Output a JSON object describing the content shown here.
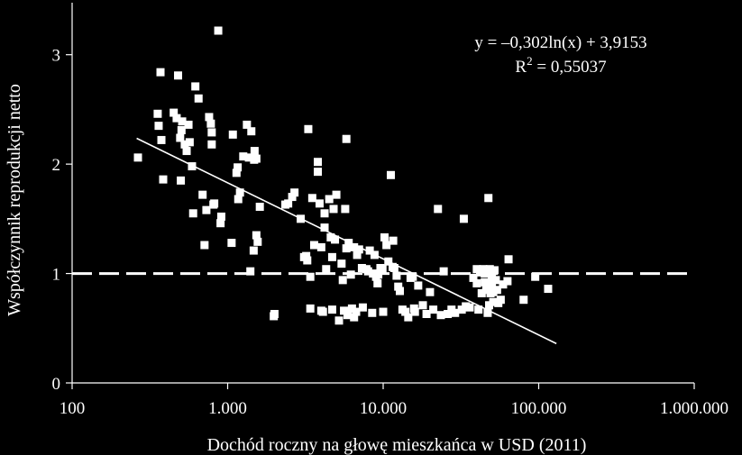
{
  "chart_data": {
    "type": "scatter",
    "title": "",
    "xlabel": "Dochód roczny na głowę mieszkańca w USD (2011)",
    "ylabel": "Współczynnik reprodukcji netto",
    "x_scale": "log",
    "xlim": [
      100,
      1000000
    ],
    "ylim": [
      0,
      3.5
    ],
    "x_ticks": [
      {
        "value": 100,
        "label": "100"
      },
      {
        "value": 1000,
        "label": "1.000"
      },
      {
        "value": 10000,
        "label": "10.000"
      },
      {
        "value": 100000,
        "label": "100.000"
      },
      {
        "value": 1000000,
        "label": "1.000.000"
      }
    ],
    "y_ticks": [
      {
        "value": 0,
        "label": "0"
      },
      {
        "value": 1,
        "label": "1"
      },
      {
        "value": 2,
        "label": "2"
      },
      {
        "value": 3,
        "label": "3"
      }
    ],
    "grid": false,
    "reference_line": {
      "y": 1,
      "style": "dashed"
    },
    "trendline": {
      "type": "logarithmic",
      "a": -0.302,
      "b": 3.9153,
      "x_range": [
        260,
        130000
      ],
      "equation_label": "y = –0,302ln(x) + 3,9153",
      "r2_prefix": "R",
      "r2_exp": "2",
      "r2_value": " = 0,55037"
    },
    "colors": {
      "background": "#000000",
      "foreground": "#ffffff"
    },
    "points": [
      [
        265,
        2.06
      ],
      [
        355,
        2.46
      ],
      [
        360,
        2.35
      ],
      [
        370,
        2.84
      ],
      [
        385,
        1.86
      ],
      [
        375,
        2.22
      ],
      [
        450,
        2.47
      ],
      [
        470,
        2.42
      ],
      [
        480,
        2.81
      ],
      [
        495,
        2.24
      ],
      [
        500,
        1.85
      ],
      [
        505,
        2.31
      ],
      [
        510,
        2.39
      ],
      [
        530,
        2.18
      ],
      [
        545,
        2.12
      ],
      [
        560,
        2.36
      ],
      [
        570,
        2.2
      ],
      [
        590,
        1.98
      ],
      [
        600,
        1.55
      ],
      [
        620,
        2.71
      ],
      [
        650,
        2.6
      ],
      [
        690,
        1.72
      ],
      [
        710,
        1.26
      ],
      [
        730,
        1.58
      ],
      [
        760,
        2.43
      ],
      [
        780,
        2.37
      ],
      [
        790,
        2.29
      ],
      [
        790,
        2.18
      ],
      [
        810,
        1.63
      ],
      [
        820,
        1.64
      ],
      [
        870,
        3.22
      ],
      [
        900,
        1.46
      ],
      [
        910,
        1.52
      ],
      [
        1060,
        1.28
      ],
      [
        1080,
        2.27
      ],
      [
        1140,
        1.92
      ],
      [
        1160,
        1.97
      ],
      [
        1170,
        1.68
      ],
      [
        1200,
        1.74
      ],
      [
        1260,
        2.07
      ],
      [
        1330,
        2.36
      ],
      [
        1370,
        2.06
      ],
      [
        1400,
        1.02
      ],
      [
        1420,
        2.3
      ],
      [
        1470,
        1.21
      ],
      [
        1480,
        2.04
      ],
      [
        1490,
        2.12
      ],
      [
        1530,
        2.05
      ],
      [
        1530,
        1.35
      ],
      [
        1560,
        1.29
      ],
      [
        1610,
        1.61
      ],
      [
        1980,
        0.61
      ],
      [
        2000,
        0.63
      ],
      [
        2350,
        1.63
      ],
      [
        2450,
        1.64
      ],
      [
        2600,
        1.7
      ],
      [
        2690,
        1.74
      ],
      [
        2950,
        1.5
      ],
      [
        3100,
        1.15
      ],
      [
        3200,
        1.16
      ],
      [
        3250,
        1.12
      ],
      [
        3300,
        2.32
      ],
      [
        3400,
        0.68
      ],
      [
        3400,
        0.97
      ],
      [
        3500,
        1.69
      ],
      [
        3600,
        1.26
      ],
      [
        3800,
        2.02
      ],
      [
        3800,
        1.93
      ],
      [
        3900,
        1.64
      ],
      [
        4000,
        1.24
      ],
      [
        4000,
        0.66
      ],
      [
        4100,
        0.65
      ],
      [
        4200,
        1.55
      ],
      [
        4200,
        1.42
      ],
      [
        4300,
        1.04
      ],
      [
        4500,
        1.68
      ],
      [
        4600,
        1.33
      ],
      [
        4700,
        1.15
      ],
      [
        4700,
        0.67
      ],
      [
        4800,
        1.59
      ],
      [
        4900,
        1.31
      ],
      [
        5000,
        1.72
      ],
      [
        5200,
        0.57
      ],
      [
        5400,
        1.09
      ],
      [
        5500,
        0.94
      ],
      [
        5600,
        0.66
      ],
      [
        5700,
        1.59
      ],
      [
        5800,
        2.23
      ],
      [
        5800,
        1.23
      ],
      [
        5900,
        0.62
      ],
      [
        6000,
        1.28
      ],
      [
        6200,
        0.99
      ],
      [
        6300,
        0.68
      ],
      [
        6500,
        1.24
      ],
      [
        6500,
        0.6
      ],
      [
        6700,
        0.65
      ],
      [
        6800,
        1.17
      ],
      [
        7000,
        1.22
      ],
      [
        7300,
        1.05
      ],
      [
        7400,
        0.69
      ],
      [
        7800,
        1.04
      ],
      [
        8000,
        1.02
      ],
      [
        8200,
        1.21
      ],
      [
        8500,
        0.64
      ],
      [
        8600,
        1.0
      ],
      [
        8800,
        1.17
      ],
      [
        9000,
        0.97
      ],
      [
        9200,
        0.91
      ],
      [
        9300,
        0.99
      ],
      [
        9600,
        1.05
      ],
      [
        9900,
        1.04
      ],
      [
        10000,
        0.65
      ],
      [
        10200,
        1.33
      ],
      [
        10500,
        1.26
      ],
      [
        10800,
        1.11
      ],
      [
        11200,
        1.9
      ],
      [
        11500,
        1.06
      ],
      [
        11600,
        1.3
      ],
      [
        11800,
        1.05
      ],
      [
        12200,
        0.98
      ],
      [
        12500,
        0.88
      ],
      [
        12800,
        0.84
      ],
      [
        13300,
        0.67
      ],
      [
        13900,
        0.65
      ],
      [
        14500,
        0.6
      ],
      [
        15000,
        0.96
      ],
      [
        15500,
        0.97
      ],
      [
        15800,
        0.68
      ],
      [
        16000,
        0.65
      ],
      [
        16800,
        0.89
      ],
      [
        18000,
        0.71
      ],
      [
        19000,
        0.63
      ],
      [
        20000,
        0.83
      ],
      [
        21000,
        0.67
      ],
      [
        22500,
        1.59
      ],
      [
        23500,
        0.62
      ],
      [
        24500,
        1.02
      ],
      [
        26000,
        0.63
      ],
      [
        27500,
        0.67
      ],
      [
        29000,
        0.64
      ],
      [
        32000,
        0.67
      ],
      [
        33000,
        1.5
      ],
      [
        34000,
        0.7
      ],
      [
        36000,
        0.69
      ],
      [
        38000,
        0.96
      ],
      [
        40000,
        0.91
      ],
      [
        40000,
        1.04
      ],
      [
        41000,
        0.67
      ],
      [
        42000,
        1.01
      ],
      [
        43000,
        0.82
      ],
      [
        44000,
        1.04
      ],
      [
        45000,
        0.92
      ],
      [
        45000,
        1.0
      ],
      [
        46000,
        0.85
      ],
      [
        47000,
        0.64
      ],
      [
        47500,
        1.69
      ],
      [
        48000,
        0.71
      ],
      [
        48500,
        1.04
      ],
      [
        49000,
        0.82
      ],
      [
        49000,
        1.02
      ],
      [
        50000,
        0.96
      ],
      [
        50000,
        0.9
      ],
      [
        51000,
        0.74
      ],
      [
        51000,
        0.83
      ],
      [
        52000,
        1.03
      ],
      [
        53000,
        0.94
      ],
      [
        54000,
        0.85
      ],
      [
        55000,
        0.73
      ],
      [
        57000,
        0.76
      ],
      [
        59000,
        0.9
      ],
      [
        63000,
        0.93
      ],
      [
        64000,
        1.13
      ],
      [
        80000,
        0.76
      ],
      [
        95000,
        0.97
      ],
      [
        115000,
        0.86
      ]
    ]
  }
}
